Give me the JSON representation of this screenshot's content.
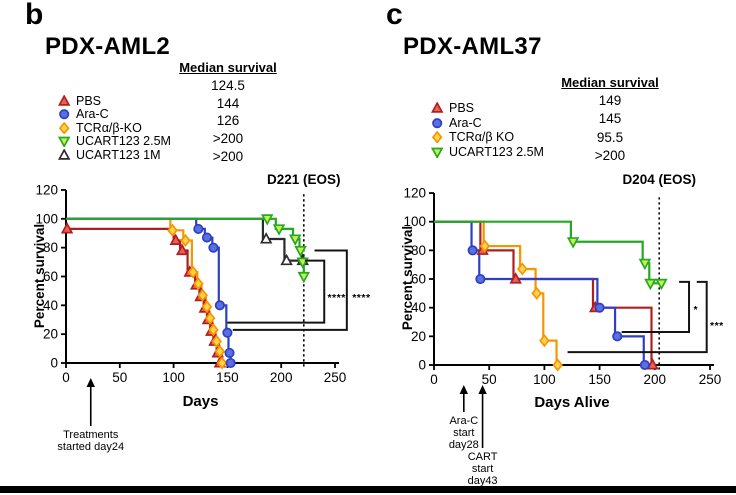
{
  "panels": [
    {
      "letter": "b",
      "title": "PDX-AML2",
      "median_header": "Median survival",
      "medians": [
        "124.5",
        "144",
        "126",
        ">200",
        ">200"
      ]
    },
    {
      "letter": "c",
      "title": "PDX-AML37",
      "median_header": "Median survival",
      "medians": [
        "149",
        "145",
        "95.5",
        ">200"
      ]
    }
  ],
  "chart_data": [
    {
      "type": "line",
      "subtype": "kaplan_meier_step",
      "title": "PDX-AML2",
      "xlabel": "Days",
      "ylabel": "Percent survival",
      "xlim": [
        0,
        250
      ],
      "ylim": [
        0,
        120
      ],
      "xticks": [
        0,
        50,
        100,
        150,
        200,
        250
      ],
      "yticks": [
        0,
        20,
        40,
        60,
        80,
        100,
        120
      ],
      "grid": false,
      "eos": {
        "x": 221,
        "label": "D221 (EOS)"
      },
      "series": [
        {
          "name": "PBS",
          "median": "124.5",
          "marker": "triangle-up",
          "color": "#B01F1F",
          "fill": "#EA6052",
          "steps": [
            [
              0,
              93
            ],
            [
              100,
              85
            ],
            [
              106,
              78
            ],
            [
              113,
              63
            ],
            [
              120,
              54
            ],
            [
              124,
              46
            ],
            [
              128,
              38
            ],
            [
              131,
              30
            ],
            [
              134,
              22
            ],
            [
              137,
              15
            ],
            [
              140,
              7
            ],
            [
              143,
              0
            ]
          ],
          "markers": [
            [
              1,
              93
            ],
            [
              102,
              85
            ],
            [
              108,
              78
            ],
            [
              115,
              63
            ],
            [
              121,
              54
            ],
            [
              125,
              46
            ],
            [
              129,
              38
            ],
            [
              132,
              30
            ],
            [
              135,
              22
            ],
            [
              138,
              15
            ],
            [
              141,
              7
            ],
            [
              143,
              0
            ]
          ],
          "end": null
        },
        {
          "name": "Ara-C",
          "median": "144",
          "marker": "circle",
          "color": "#2E3FC4",
          "fill": "#5A6FE0",
          "steps": [
            [
              0,
              100
            ],
            [
              121,
              93
            ],
            [
              129,
              87
            ],
            [
              136,
              80
            ],
            [
              142,
              40
            ],
            [
              149,
              21
            ],
            [
              151,
              7
            ],
            [
              153,
              0
            ]
          ],
          "markers": [
            [
              123,
              93
            ],
            [
              131,
              87
            ],
            [
              137,
              80
            ],
            [
              143,
              40
            ],
            [
              150,
              21
            ],
            [
              152,
              7
            ],
            [
              153,
              0
            ]
          ],
          "end": null
        },
        {
          "name": "TCRα/β-KO",
          "median": "126",
          "marker": "diamond",
          "color": "#F79500",
          "fill": "#FFD34D",
          "steps": [
            [
              0,
              100
            ],
            [
              97,
              92
            ],
            [
              109,
              85
            ],
            [
              117,
              63
            ],
            [
              122,
              55
            ],
            [
              126,
              47
            ],
            [
              130,
              39
            ],
            [
              133,
              31
            ],
            [
              136,
              23
            ],
            [
              139,
              15
            ],
            [
              142,
              8
            ],
            [
              145,
              0
            ]
          ],
          "markers": [
            [
              99,
              92
            ],
            [
              111,
              85
            ],
            [
              118,
              63
            ],
            [
              123,
              55
            ],
            [
              127,
              47
            ],
            [
              131,
              39
            ],
            [
              134,
              31
            ],
            [
              137,
              23
            ],
            [
              140,
              15
            ],
            [
              143,
              8
            ],
            [
              145,
              0
            ]
          ],
          "end": null
        },
        {
          "name": "UCART123 2.5M",
          "median": ">200",
          "marker": "triangle-down",
          "color": "#26A826",
          "fill": "#C7F04A",
          "steps": [
            [
              0,
              100
            ],
            [
              195,
              93
            ],
            [
              211,
              86
            ],
            [
              217,
              78
            ],
            [
              219,
              70
            ],
            [
              221,
              60
            ]
          ],
          "markers": [
            [
              187,
              100
            ],
            [
              198,
              93
            ],
            [
              213,
              86
            ],
            [
              218,
              78
            ],
            [
              220,
              70
            ],
            [
              221,
              60
            ]
          ],
          "end": 222
        },
        {
          "name": "UCART123 1M",
          "median": ">200",
          "marker": "triangle-up",
          "color": "#2B2B2B",
          "fill": "#FFFFFF",
          "steps": [
            [
              0,
              100
            ],
            [
              183,
              86
            ],
            [
              203,
              71
            ]
          ],
          "markers": [
            [
              186,
              86
            ],
            [
              205,
              71
            ],
            [
              220,
              71
            ]
          ],
          "end": 222
        }
      ],
      "significance": [
        {
          "path": [
            [
              222,
              71
            ],
            [
              240,
              71
            ],
            [
              240,
              28
            ],
            [
              150,
              28
            ]
          ],
          "stars": "****",
          "star_at": [
            243,
            48
          ]
        },
        {
          "path": [
            [
              231,
              78
            ],
            [
              261,
              78
            ],
            [
              261,
              23
            ],
            [
              155,
              23
            ]
          ],
          "stars": "****",
          "star_at": [
            266,
            48
          ]
        }
      ],
      "arrows": [
        {
          "x": 23,
          "tip": 218,
          "tail": 266,
          "lines": [
            "Treatments",
            "started day24"
          ]
        }
      ]
    },
    {
      "type": "line",
      "subtype": "kaplan_meier_step",
      "title": "PDX-AML37",
      "xlabel": "Days Alive",
      "ylabel": "Percent survival",
      "xlim": [
        0,
        250
      ],
      "ylim": [
        0,
        120
      ],
      "xticks": [
        0,
        50,
        100,
        150,
        200,
        250
      ],
      "yticks": [
        0,
        20,
        40,
        60,
        80,
        100,
        120
      ],
      "grid": false,
      "eos": {
        "x": 204,
        "label": "D204 (EOS)"
      },
      "series": [
        {
          "name": "PBS",
          "median": "149",
          "marker": "triangle-up",
          "color": "#B01F1F",
          "fill": "#EA6052",
          "steps": [
            [
              0,
              100
            ],
            [
              42,
              80
            ],
            [
              72,
              60
            ],
            [
              144,
              40
            ],
            [
              197,
              0
            ]
          ],
          "markers": [
            [
              44,
              80
            ],
            [
              74,
              60
            ],
            [
              146,
              40
            ],
            [
              198,
              0
            ]
          ],
          "end": null
        },
        {
          "name": "Ara-C",
          "median": "145",
          "marker": "circle",
          "color": "#2E3FC4",
          "fill": "#5A6FE0",
          "steps": [
            [
              0,
              100
            ],
            [
              34,
              80
            ],
            [
              41,
              60
            ],
            [
              148,
              40
            ],
            [
              164,
              20
            ],
            [
              190,
              0
            ]
          ],
          "markers": [
            [
              35,
              80
            ],
            [
              42,
              60
            ],
            [
              150,
              40
            ],
            [
              166,
              20
            ],
            [
              191,
              0
            ]
          ],
          "end": null
        },
        {
          "name": "TCRα/β KO",
          "median": "95.5",
          "marker": "diamond",
          "color": "#F79500",
          "fill": "#FFD34D",
          "steps": [
            [
              0,
              100
            ],
            [
              45,
              83
            ],
            [
              78,
              67
            ],
            [
              92,
              50
            ],
            [
              99,
              17
            ],
            [
              111,
              0
            ]
          ],
          "markers": [
            [
              46,
              83
            ],
            [
              80,
              67
            ],
            [
              93,
              50
            ],
            [
              100,
              17
            ],
            [
              112,
              0
            ]
          ],
          "end": null
        },
        {
          "name": "UCART123 2.5M",
          "median": ">200",
          "marker": "triangle-down",
          "color": "#26A826",
          "fill": "#C7F04A",
          "steps": [
            [
              0,
              100
            ],
            [
              124,
              86
            ],
            [
              189,
              71
            ],
            [
              195,
              57
            ]
          ],
          "markers": [
            [
              126,
              86
            ],
            [
              191,
              71
            ],
            [
              196,
              57
            ],
            [
              206,
              57
            ]
          ],
          "end": 208
        }
      ],
      "significance": [
        {
          "path": [
            [
              222,
              58
            ],
            [
              231,
              58
            ],
            [
              231,
              23
            ],
            [
              170,
              23
            ]
          ],
          "stars": "*",
          "star_at": [
            235,
            41
          ]
        },
        {
          "path": [
            [
              238,
              58
            ],
            [
              247,
              58
            ],
            [
              247,
              9
            ],
            [
              121,
              9
            ]
          ],
          "stars": "***",
          "star_at": [
            250,
            30
          ]
        }
      ],
      "arrows": [
        {
          "x": 27,
          "tip": 225,
          "tail": 252,
          "lines": [
            "Ara-C",
            "start",
            "day28"
          ]
        },
        {
          "x": 44,
          "tip": 225,
          "tail": 288,
          "lines": [
            "CART",
            "start",
            "day43"
          ]
        }
      ]
    }
  ]
}
